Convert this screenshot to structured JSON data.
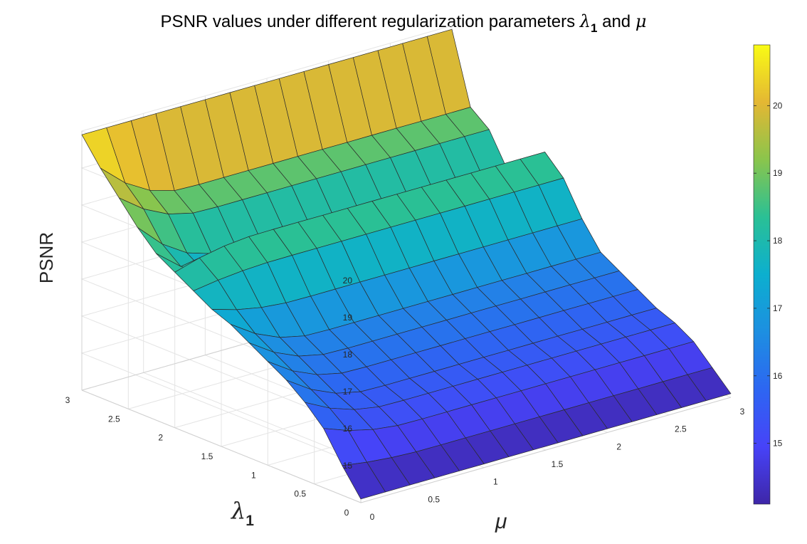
{
  "chart_data": {
    "type": "surface3d",
    "title_prefix": "PSNR values under different regularization parameters ",
    "title_sym1": "λ",
    "title_sub1": "1",
    "title_mid": " and ",
    "title_sym2": "μ",
    "zlabel": "PSNR",
    "xlabel_sym": "μ",
    "ylabel_sym": "λ",
    "ylabel_sub": "1",
    "x_range": [
      0,
      3
    ],
    "y_range": [
      0,
      3
    ],
    "zlim": [
      14,
      21
    ],
    "x_ticks": [
      "0",
      "0.5",
      "1",
      "1.5",
      "2",
      "2.5",
      "3"
    ],
    "y_ticks": [
      "0",
      "0.5",
      "1",
      "1.5",
      "2",
      "2.5",
      "3"
    ],
    "z_ticks": [
      "15",
      "16",
      "17",
      "18",
      "19",
      "20"
    ],
    "grid": true,
    "colormap": "parula",
    "colorbar": {
      "position": "right",
      "range": [
        14.1,
        20.9
      ],
      "ticks": [
        "15",
        "16",
        "17",
        "18",
        "19",
        "20"
      ]
    },
    "mu": [
      0,
      0.2,
      0.4,
      0.6,
      0.8,
      1.0,
      1.2,
      1.4,
      1.6,
      1.8,
      2.0,
      2.2,
      2.4,
      2.6,
      2.8,
      3.0
    ],
    "lambda1": [
      0,
      0.2,
      0.4,
      0.6,
      0.8,
      1.0,
      1.2,
      1.4,
      1.6,
      1.8,
      2.0,
      2.2,
      2.4,
      2.6,
      2.8,
      3.0
    ],
    "psnr_profile_vs_lambda1": [
      14.1,
      14.6,
      15.1,
      15.4,
      15.6,
      15.9,
      16.2,
      16.5,
      17.2,
      18.1,
      18.6,
      17.4,
      17.7,
      18.6,
      19.0,
      20.9
    ],
    "mu0_profile_vs_lambda1": [
      14.1,
      14.8,
      15.6,
      16.1,
      16.5,
      16.8,
      17.1,
      17.4,
      17.6,
      17.9,
      18.2,
      18.5,
      19.0,
      19.6,
      20.2,
      20.9
    ],
    "ramp_mu_width": 0.7
  }
}
